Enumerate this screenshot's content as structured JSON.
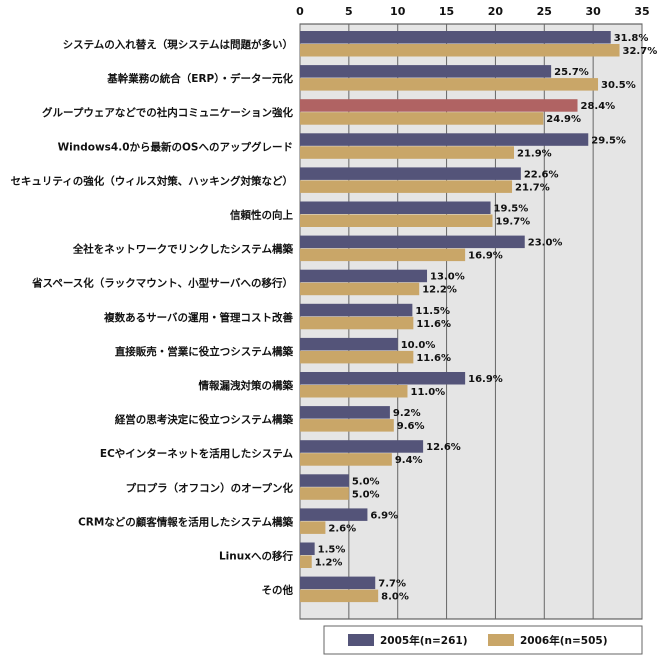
{
  "chart_data": {
    "type": "bar",
    "orientation": "horizontal",
    "xlim": [
      0,
      35
    ],
    "x_ticks": [
      "0",
      "5",
      "10",
      "15",
      "20",
      "25",
      "30",
      "35"
    ],
    "grid": true,
    "legend_position": "bottom-right",
    "categories": [
      "システムの入れ替え（現システムは問題が多い）",
      "基幹業務の統合（ERP）・データー元化",
      "グループウェアなどでの社内コミュニケーション強化",
      "Windows4.0から最新のOSへのアップグレード",
      "セキュリティの強化（ウィルス対策、ハッキング対策など）",
      "信頼性の向上",
      "全社をネットワークでリンクしたシステム構築",
      "省スペース化（ラックマウント、小型サーバへの移行）",
      "複数あるサーバの運用・管理コスト改善",
      "直接販売・営業に役立つシステム構築",
      "情報漏洩対策の構築",
      "経営の思考決定に役立つシステム構築",
      "ECやインターネットを活用したシステム",
      "プロプラ（オフコン）のオープン化",
      "CRMなどの顧客情報を活用したシステム構築",
      "Linuxへの移行",
      "その他"
    ],
    "series": [
      {
        "name": "2005年(n=261)",
        "color": "#545479",
        "values": [
          31.8,
          25.7,
          28.4,
          29.5,
          22.6,
          19.5,
          23.0,
          13.0,
          11.5,
          10.0,
          16.9,
          9.2,
          12.6,
          5.0,
          6.9,
          1.5,
          7.7
        ],
        "labels": [
          "31.8%",
          "25.7%",
          "28.4%",
          "29.5%",
          "22.6%",
          "19.5%",
          "23.0%",
          "13.0%",
          "11.5%",
          "10.0%",
          "16.9%",
          "9.2%",
          "12.6%",
          "5.0%",
          "6.9%",
          "1.5%",
          "7.7%"
        ]
      },
      {
        "name": "2006年(n=505)",
        "color": "#c9a668",
        "values": [
          32.7,
          30.5,
          24.9,
          21.9,
          21.7,
          19.7,
          16.9,
          12.2,
          11.6,
          11.6,
          11.0,
          9.6,
          9.4,
          5.0,
          2.6,
          1.2,
          8.0
        ],
        "labels": [
          "32.7%",
          "30.5%",
          "24.9%",
          "21.9%",
          "21.7%",
          "19.7%",
          "16.9%",
          "12.2%",
          "11.6%",
          "11.6%",
          "11.0%",
          "9.6%",
          "9.4%",
          "5.0%",
          "2.6%",
          "1.2%",
          "8.0%"
        ]
      }
    ],
    "highlight": {
      "category_index": 2,
      "color": "#b06363"
    },
    "plot_background": "#e5e5e5",
    "grid_color": "#666666"
  }
}
